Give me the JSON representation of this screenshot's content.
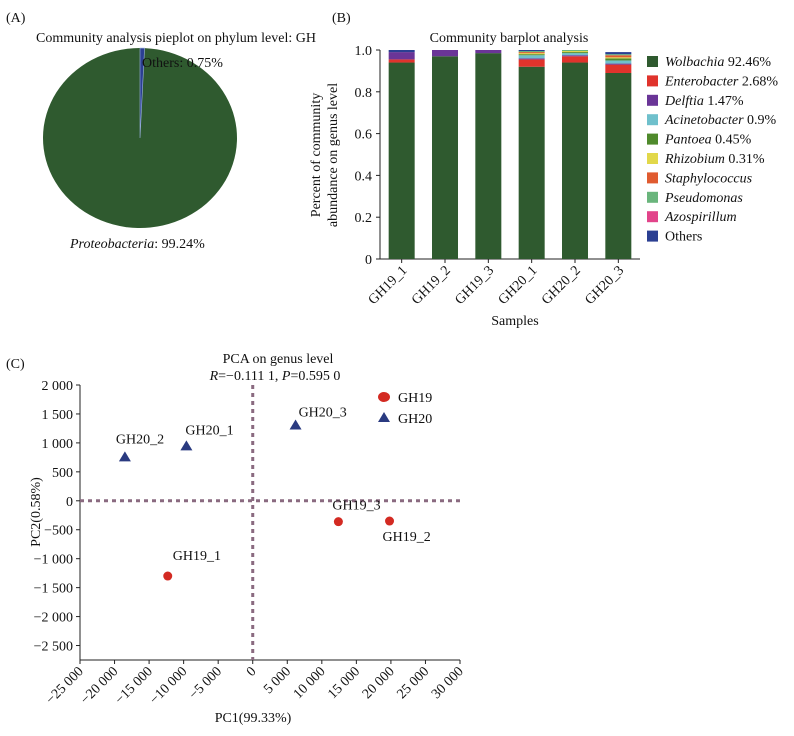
{
  "panels": {
    "a_label": "(A)",
    "b_label": "(B)",
    "c_label": "(C)"
  },
  "colors": {
    "wolbachia": "#2f5a2f",
    "enterobacter": "#e0332c",
    "delftia": "#6a3597",
    "acinetobacter": "#6fc0cc",
    "pantoea": "#4f8a2c",
    "rhizobium": "#e2d84a",
    "staphylococcus": "#e05b30",
    "pseudomonas": "#6ab57c",
    "azospirillum": "#e2448a",
    "others": "#2b3f92",
    "gh19": "#d32a22",
    "gh20": "#2a3a80",
    "dashed": "#8a6a80"
  },
  "chart_data": [
    {
      "type": "pie",
      "title": "Community analysis pieplot on phylum level: GH",
      "slices": [
        {
          "name": "Proteobacteria",
          "value": 99.24,
          "label_suffix": ": 99.24%"
        },
        {
          "name": "Others",
          "value": 0.75,
          "label_suffix": ": 0.75%"
        }
      ]
    },
    {
      "type": "bar",
      "stacked": true,
      "title": "Community barplot analysis",
      "xlabel": "Samples",
      "ylabel_line1": "Percent of community",
      "ylabel_line2": "abundance on genus level",
      "ylim": [
        0,
        1
      ],
      "yticks": [
        "0",
        "0.2",
        "0.4",
        "0.6",
        "0.8",
        "1.0"
      ],
      "categories": [
        "GH19_1",
        "GH19_2",
        "GH19_3",
        "GH20_1",
        "GH20_2",
        "GH20_3"
      ],
      "series": [
        {
          "name": "Wolbachia",
          "legend_value": " 92.46%",
          "values": [
            0.94,
            0.97,
            0.985,
            0.92,
            0.94,
            0.89
          ]
        },
        {
          "name": "Enterobacter",
          "legend_value": " 2.68%",
          "values": [
            0.015,
            0.0,
            0.0,
            0.035,
            0.03,
            0.04
          ]
        },
        {
          "name": "Delftia",
          "legend_value": " 1.47%",
          "values": [
            0.035,
            0.03,
            0.015,
            0.005,
            0.005,
            0.005
          ]
        },
        {
          "name": "Acinetobacter",
          "legend_value": " 0.9%",
          "values": [
            0.0,
            0.0,
            0.0,
            0.015,
            0.01,
            0.015
          ]
        },
        {
          "name": "Pantoea",
          "legend_value": " 0.45%",
          "values": [
            0.0,
            0.0,
            0.0,
            0.005,
            0.005,
            0.01
          ]
        },
        {
          "name": "Rhizobium",
          "legend_value": " 0.31%",
          "values": [
            0.0,
            0.0,
            0.0,
            0.005,
            0.005,
            0.005
          ]
        },
        {
          "name": "Staphylococcus",
          "legend_value": "",
          "values": [
            0.0,
            0.0,
            0.0,
            0.005,
            0.0,
            0.01
          ]
        },
        {
          "name": "Pseudomonas",
          "legend_value": "",
          "values": [
            0.0,
            0.0,
            0.0,
            0.005,
            0.005,
            0.005
          ]
        },
        {
          "name": "Azospirillum",
          "legend_value": "",
          "values": [
            0.0,
            0.0,
            0.0,
            0.0,
            0.0,
            0.0
          ]
        },
        {
          "name": "Others",
          "legend_value": "",
          "values": [
            0.01,
            0.0,
            0.0,
            0.005,
            0.0,
            0.01
          ]
        }
      ]
    },
    {
      "type": "scatter",
      "title": "PCA on genus level",
      "subtitle_r": "R",
      "subtitle_r_value": "=−0.111 1, ",
      "subtitle_p": "P",
      "subtitle_p_value": "=0.595 0",
      "xlabel": "PC1(99.33%)",
      "ylabel": "PC2(0.58%)",
      "xlim": [
        -25000,
        30000
      ],
      "ylim": [
        -2750,
        2000
      ],
      "xticks": [
        -25000,
        -20000,
        -15000,
        -10000,
        -5000,
        0,
        5000,
        10000,
        15000,
        20000,
        25000,
        30000
      ],
      "xtick_labels": [
        "−25 000",
        "−20 000",
        "−15 000",
        "−10 000",
        "−5 000",
        "0",
        "5 000",
        "10 000",
        "15 000",
        "20 000",
        "25 000",
        "30 000"
      ],
      "yticks": [
        2000,
        1500,
        1000,
        500,
        0,
        -500,
        -1000,
        -1500,
        -2000,
        -2500
      ],
      "ytick_labels": [
        "2 000",
        "1 500",
        "1 000",
        "500",
        "0",
        "−500",
        "−1 000",
        "−1 500",
        "−2 000",
        "−2 500"
      ],
      "legend": [
        {
          "name": "GH19",
          "marker": "circle"
        },
        {
          "name": "GH20",
          "marker": "triangle"
        }
      ],
      "points": [
        {
          "label": "GH19_1",
          "group": "GH19",
          "x": -12300,
          "y": -1300
        },
        {
          "label": "GH19_2",
          "group": "GH19",
          "x": 19800,
          "y": -350
        },
        {
          "label": "GH19_3",
          "group": "GH19",
          "x": 12400,
          "y": -360
        },
        {
          "label": "GH20_1",
          "group": "GH20",
          "x": -9600,
          "y": 940
        },
        {
          "label": "GH20_2",
          "group": "GH20",
          "x": -18500,
          "y": 750
        },
        {
          "label": "GH20_3",
          "group": "GH20",
          "x": 6200,
          "y": 1300
        }
      ]
    }
  ]
}
